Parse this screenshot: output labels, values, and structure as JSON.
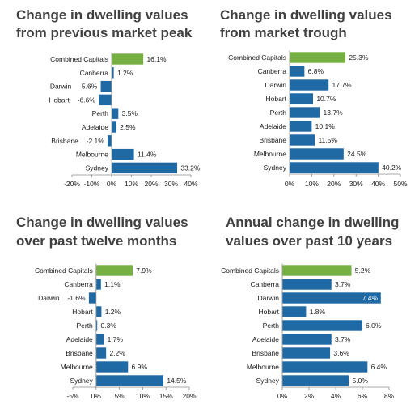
{
  "chart_data": [
    {
      "type": "bar",
      "orientation": "horizontal",
      "title": [
        "Change in dwelling values",
        "from previous market peak"
      ],
      "categories": [
        "Combined Capitals",
        "Canberra",
        "Darwin",
        "Hobart",
        "Perth",
        "Adelaide",
        "Brisbane",
        "Melbourne",
        "Sydney"
      ],
      "values": [
        16.1,
        1.2,
        -5.6,
        -6.6,
        3.5,
        2.5,
        -2.1,
        11.4,
        33.2
      ],
      "data_labels": [
        "16.1%",
        "1.2%",
        "-5.6%",
        "-6.6%",
        "3.5%",
        "2.5%",
        "-2.1%",
        "11.4%",
        "33.2%"
      ],
      "xlim": [
        -20,
        40
      ],
      "ticks": [
        -20,
        -10,
        0,
        10,
        20,
        30,
        40
      ],
      "tick_labels": [
        "-20%",
        "-10%",
        "0%",
        "10%",
        "20%",
        "30%",
        "40%"
      ],
      "grid": false,
      "highlight_category": "Combined Capitals"
    },
    {
      "type": "bar",
      "orientation": "horizontal",
      "title": [
        "Change in dwelling values",
        "from market trough"
      ],
      "categories": [
        "Combined Capitals",
        "Canberra",
        "Darwin",
        "Hobart",
        "Perth",
        "Adelaide",
        "Brisbane",
        "Melbourne",
        "Sydney"
      ],
      "values": [
        25.3,
        6.8,
        17.7,
        10.7,
        13.7,
        10.1,
        11.5,
        24.5,
        40.2
      ],
      "data_labels": [
        "25.3%",
        "6.8%",
        "17.7%",
        "10.7%",
        "13.7%",
        "10.1%",
        "11.5%",
        "24.5%",
        "40.2%"
      ],
      "xlim": [
        0,
        50
      ],
      "ticks": [
        0,
        10,
        20,
        30,
        40,
        50
      ],
      "tick_labels": [
        "0%",
        "10%",
        "20%",
        "30%",
        "40%",
        "50%"
      ],
      "grid": false,
      "highlight_category": "Combined Capitals"
    },
    {
      "type": "bar",
      "orientation": "horizontal",
      "title": [
        "Change in dwelling values",
        "over past twelve months"
      ],
      "categories": [
        "Combined Capitals",
        "Canberra",
        "Darwin",
        "Hobart",
        "Perth",
        "Adelaide",
        "Brisbane",
        "Melbourne",
        "Sydney"
      ],
      "values": [
        7.9,
        1.1,
        -1.6,
        1.2,
        0.3,
        1.7,
        2.2,
        6.9,
        14.5
      ],
      "data_labels": [
        "7.9%",
        "1.1%",
        "-1.6%",
        "1.2%",
        "0.3%",
        "1.7%",
        "2.2%",
        "6.9%",
        "14.5%"
      ],
      "xlim": [
        -5,
        20
      ],
      "ticks": [
        -5,
        0,
        5,
        10,
        15,
        20
      ],
      "tick_labels": [
        "-5%",
        "0%",
        "5%",
        "10%",
        "15%",
        "20%"
      ],
      "grid": false,
      "highlight_category": "Combined Capitals"
    },
    {
      "type": "bar",
      "orientation": "horizontal",
      "title": [
        "Annual change in dwelling",
        "values over past 10 years"
      ],
      "categories": [
        "Combined Capitals",
        "Canberra",
        "Darwin",
        "Hobart",
        "Perth",
        "Adelaide",
        "Brisbane",
        "Melbourne",
        "Sydney"
      ],
      "values": [
        5.2,
        3.7,
        7.4,
        1.8,
        6.0,
        3.7,
        3.6,
        6.4,
        5.0
      ],
      "data_labels": [
        "5.2%",
        "3.7%",
        "7.4%",
        "1.8%",
        "6.0%",
        "3.7%",
        "3.6%",
        "6.4%",
        "5.0%"
      ],
      "xlim": [
        0,
        8
      ],
      "ticks": [
        0,
        2,
        4,
        6,
        8
      ],
      "tick_labels": [
        "0%",
        "2%",
        "4%",
        "6%",
        "8%"
      ],
      "grid": false,
      "highlight_category": "Combined Capitals",
      "inside_label_category": "Darwin"
    }
  ],
  "colors": {
    "bar": "#1f6aa5",
    "bar_edge": "#ffffff",
    "highlight": "#76b043",
    "axis": "#8c8c8c",
    "title": "#404040",
    "text": "#1a1a1a"
  }
}
